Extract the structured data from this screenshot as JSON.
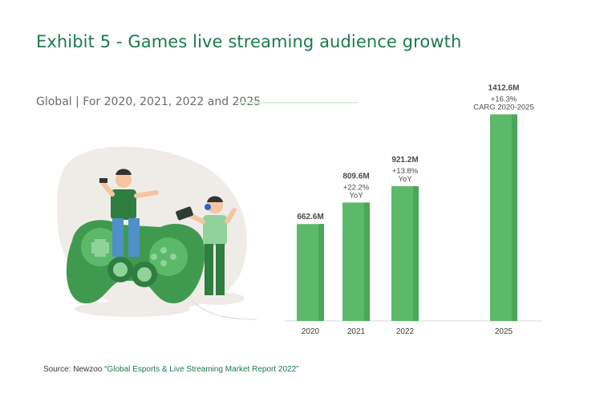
{
  "header": {
    "title": "Exhibit 5 - Games live streaming audience growth",
    "subtitle": "Global | For 2020, 2021, 2022 and 2025"
  },
  "footer": {
    "source_prefix": "Source: Newzoo ",
    "source_title": "“Global Esports & Live Streaming Market Report 2022”"
  },
  "colors": {
    "bar": "#5cb96a",
    "accent": "#1d7a4e"
  },
  "chart_data": {
    "type": "bar",
    "categories": [
      "2020",
      "2021",
      "2022",
      "2025"
    ],
    "values": [
      662.6,
      809.6,
      921.2,
      1412.6
    ],
    "value_labels": [
      "662.6M",
      "809.6M",
      "921.2M",
      "1412.6M"
    ],
    "annotations": [
      [],
      [
        "+22.2%",
        "YoY"
      ],
      [
        "+13.8%",
        "YoY"
      ],
      [
        "+16.3%",
        "CARG 2020-2025"
      ]
    ],
    "title": "Exhibit 5 - Games live streaming audience growth",
    "subtitle": "Global | For 2020, 2021, 2022 and 2025",
    "xlabel": "",
    "ylabel": "",
    "units": "M",
    "grid": false
  }
}
